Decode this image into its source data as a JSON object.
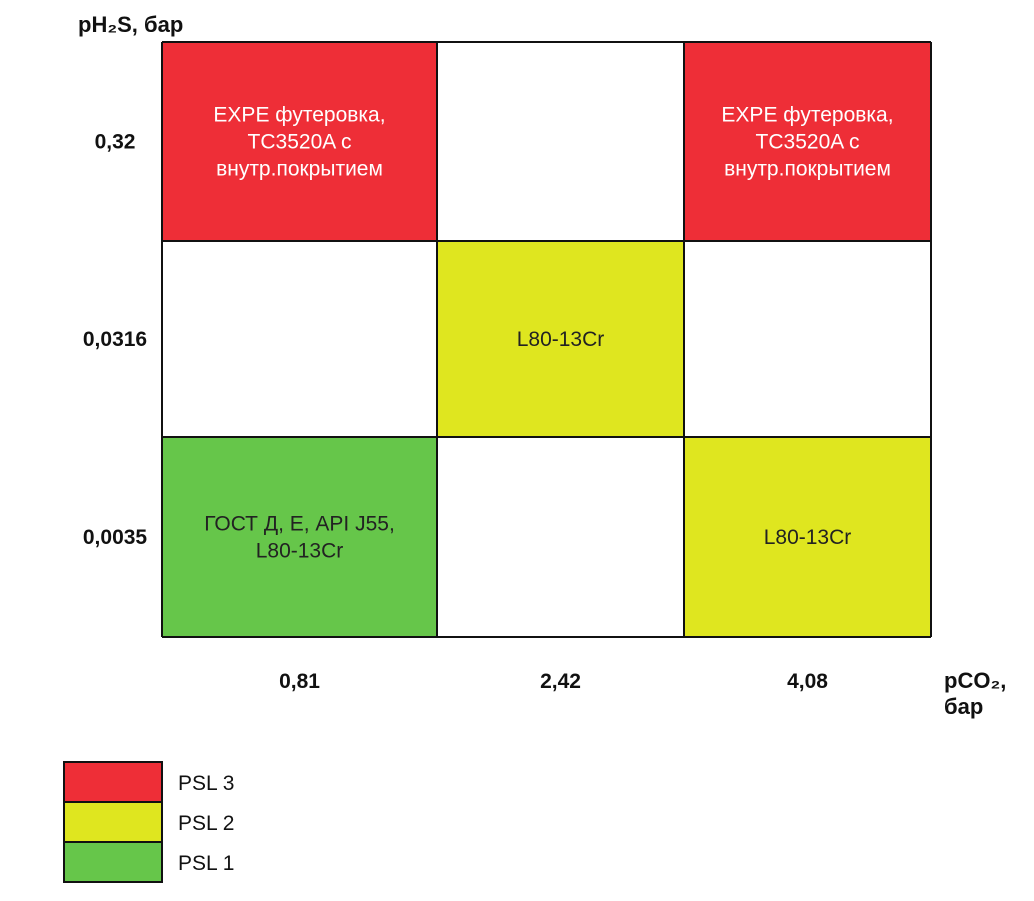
{
  "chart_data": {
    "type": "heatmap",
    "ylabel_lines": [
      "pH₂S, бар"
    ],
    "xlabel_lines": [
      "pCO₂,",
      "бар"
    ],
    "x_categories": [
      "0,81",
      "2,42",
      "4,08"
    ],
    "y_categories": [
      "0,32",
      "0,0316",
      "0,0035"
    ],
    "cells": [
      [
        {
          "level": "PSL 3",
          "text_lines": [
            "EXPE футеровка,",
            "TC3520A с",
            "внутр.покрытием"
          ]
        },
        {
          "level": "",
          "text_lines": []
        },
        {
          "level": "PSL 3",
          "text_lines": [
            "EXPE футеровка,",
            "TC3520A с",
            "внутр.покрытием"
          ]
        }
      ],
      [
        {
          "level": "",
          "text_lines": []
        },
        {
          "level": "PSL 2",
          "text_lines": [
            "L80-13Cr"
          ]
        },
        {
          "level": "",
          "text_lines": []
        }
      ],
      [
        {
          "level": "PSL 1",
          "text_lines": [
            "ГОСТ Д, Е, API J55,",
            "L80-13Cr"
          ]
        },
        {
          "level": "",
          "text_lines": []
        },
        {
          "level": "PSL 2",
          "text_lines": [
            "L80-13Cr"
          ]
        }
      ]
    ],
    "legend": [
      {
        "label": "PSL 3",
        "color": "#ee2e37"
      },
      {
        "label": "PSL 2",
        "color": "#dfe61f"
      },
      {
        "label": "PSL 1",
        "color": "#66c64a"
      }
    ],
    "empty_color": "#ffffff",
    "grid": true
  }
}
